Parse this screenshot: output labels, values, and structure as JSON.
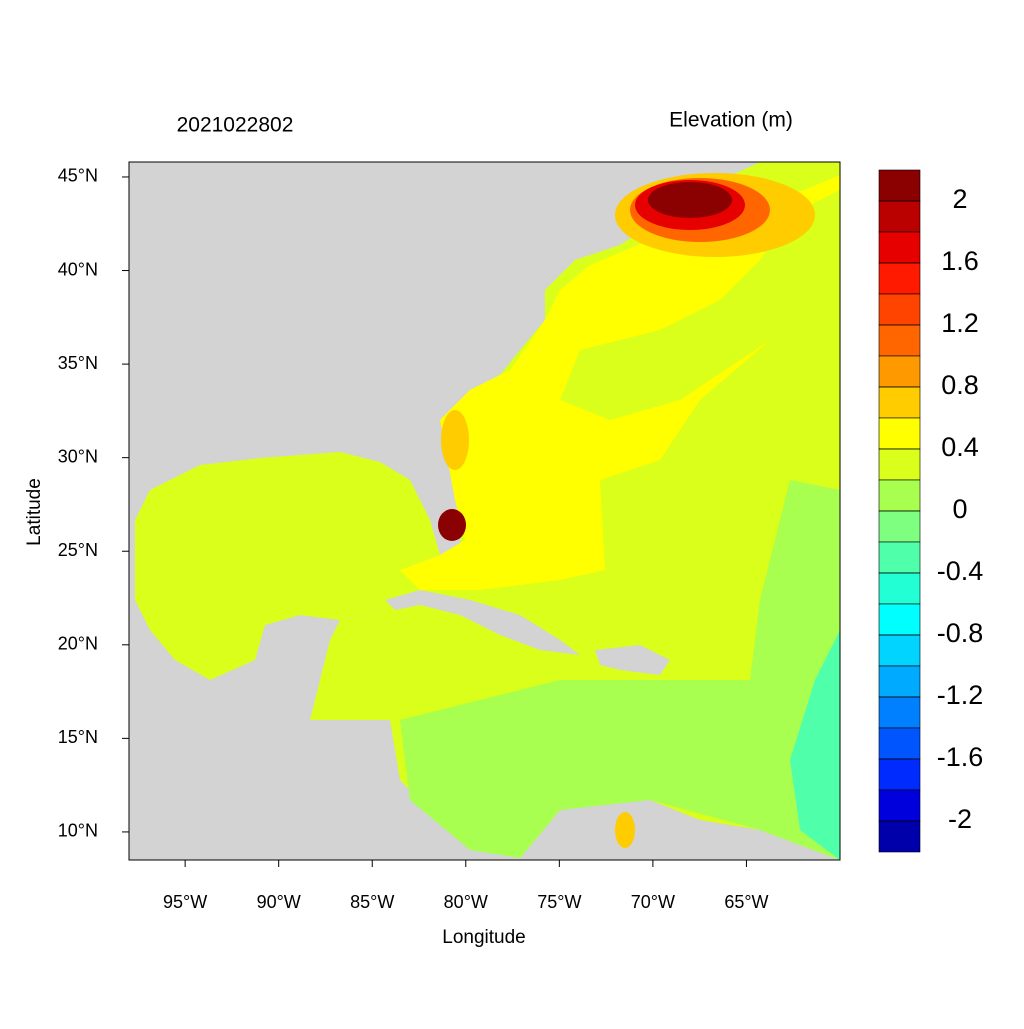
{
  "chart_data": {
    "type": "contour-map",
    "title": "2021022802",
    "subtitle": "Elevation (m)",
    "x_label": "Longitude",
    "y_label": "Latitude",
    "xlim": [
      -98,
      -60
    ],
    "ylim": [
      8.5,
      45.8
    ],
    "xticks": [
      {
        "value": -95,
        "label": "95°W"
      },
      {
        "value": -90,
        "label": "90°W"
      },
      {
        "value": -85,
        "label": "85°W"
      },
      {
        "value": -80,
        "label": "80°W"
      },
      {
        "value": -75,
        "label": "75°W"
      },
      {
        "value": -70,
        "label": "70°W"
      },
      {
        "value": -65,
        "label": "65°W"
      }
    ],
    "yticks": [
      {
        "value": 10,
        "label": "10°N"
      },
      {
        "value": 15,
        "label": "15°N"
      },
      {
        "value": 20,
        "label": "20°N"
      },
      {
        "value": 25,
        "label": "25°N"
      },
      {
        "value": 30,
        "label": "30°N"
      },
      {
        "value": 35,
        "label": "35°N"
      },
      {
        "value": 40,
        "label": "40°N"
      },
      {
        "value": 45,
        "label": "45°N"
      }
    ],
    "colorbar": {
      "lim": [
        -2.2,
        2.2
      ],
      "ticks": [
        2,
        1.6,
        1.2,
        0.8,
        0.4,
        0,
        -0.4,
        -0.8,
        -1.2,
        -1.6,
        -2
      ],
      "colors": [
        "#8b0000",
        "#bb0000",
        "#e60000",
        "#ff1a00",
        "#ff4400",
        "#ff6600",
        "#ff9900",
        "#ffcc00",
        "#ffff00",
        "#d9ff1a",
        "#a8ff50",
        "#7fff80",
        "#50ffaa",
        "#22ffd4",
        "#00ffff",
        "#00d4ff",
        "#00aaff",
        "#0080ff",
        "#0055ff",
        "#002bff",
        "#0000dd",
        "#0000aa"
      ]
    }
  }
}
